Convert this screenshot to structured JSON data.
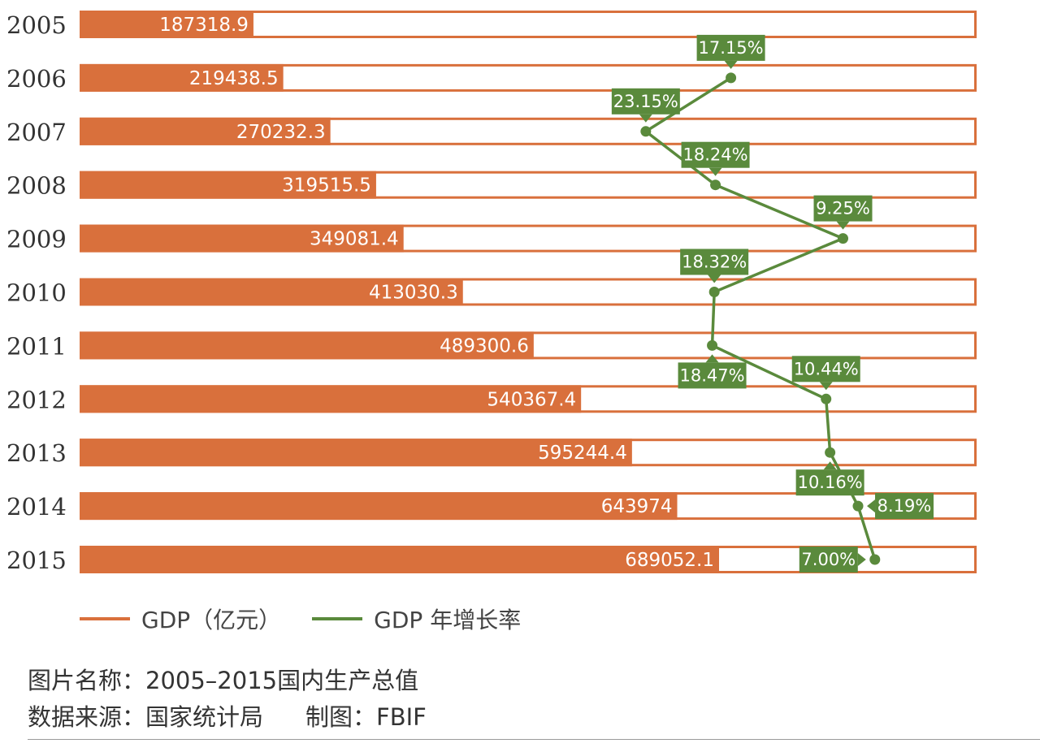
{
  "chart_data": {
    "type": "bar",
    "orientation": "horizontal",
    "categories": [
      "2005",
      "2006",
      "2007",
      "2008",
      "2009",
      "2010",
      "2011",
      "2012",
      "2013",
      "2014",
      "2015"
    ],
    "series": [
      {
        "name": "GDP（亿元）",
        "type": "bar",
        "color": "#d9703c",
        "values": [
          187318.9,
          219438.5,
          270232.3,
          319515.5,
          349081.4,
          413030.3,
          489300.6,
          540367.4,
          595244.4,
          643974,
          689052.1
        ],
        "labels": [
          "187318.9",
          "219438.5",
          "270232.3",
          "319515.5",
          "349081.4",
          "413030.3",
          "489300.6",
          "540367.4",
          "595244.4",
          "643974",
          "689052.1"
        ]
      },
      {
        "name": "GDP 年增长率",
        "type": "line",
        "color": "#5a8a3c",
        "values": [
          null,
          17.15,
          23.15,
          18.24,
          9.25,
          18.32,
          18.47,
          10.44,
          10.16,
          8.19,
          7.0
        ],
        "labels": [
          null,
          "17.15%",
          "23.15%",
          "18.24%",
          "9.25%",
          "18.32%",
          "18.47%",
          "10.44%",
          "10.16%",
          "8.19%",
          "7.00%"
        ],
        "label_side": [
          null,
          "above",
          "above",
          "above",
          "above",
          "above",
          "below",
          "above",
          "below",
          "right",
          "left"
        ]
      }
    ],
    "bar_axis": {
      "min": 0,
      "max": 689052.1
    },
    "rate_axis": {
      "min": 0,
      "max": 24,
      "direction": "reversed"
    },
    "legend": "bottom-left",
    "grid": false
  },
  "legend": {
    "items": [
      {
        "label": "GDP（亿元）",
        "color": "#d9703c"
      },
      {
        "label": "GDP 年增长率",
        "color": "#5a8a3c"
      }
    ]
  },
  "footer": {
    "title_line": "图片名称：2005–2015国内生产总值",
    "source_line": "数据来源：国家统计局",
    "credit_line": "制图：FBIF"
  }
}
